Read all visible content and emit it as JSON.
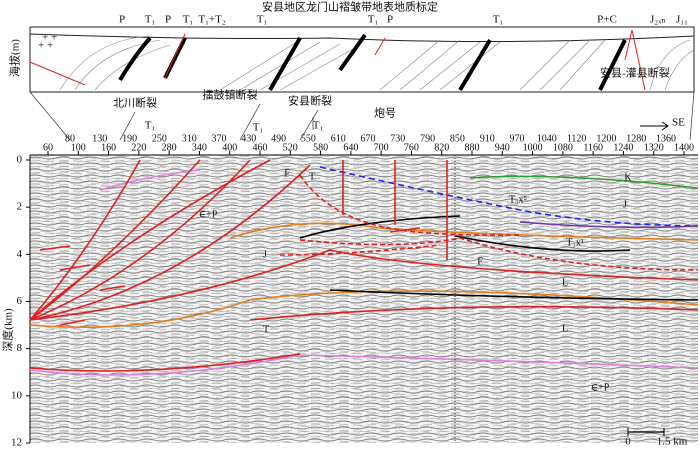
{
  "title": "安县地区龙门山褶皱带地表地质标定",
  "top_section": {
    "y_axis_label": "海拔(m)",
    "unit_labels": [
      "P",
      "T₁",
      "P",
      "T₁",
      "T₁+T₂",
      "T₁",
      "T₁",
      "P",
      "T₁",
      "P+C",
      "J₂ₓₙ",
      "J₁₁"
    ],
    "fault_label": "安县-灌县断裂"
  },
  "faults": [
    {
      "name": "北川断裂",
      "unit": "T₁"
    },
    {
      "name": "擂鼓镇断裂",
      "unit": "T₁"
    },
    {
      "name": "安县断裂",
      "unit": "T₁"
    }
  ],
  "shot_axis": {
    "label": "炮号",
    "direction": "SE",
    "upper_ticks": [
      80,
      130,
      190,
      250,
      310,
      370,
      430,
      490,
      550,
      610,
      670,
      730,
      790,
      850,
      910,
      970,
      1040,
      1120,
      1200,
      1280,
      1360
    ],
    "lower_ticks": [
      60,
      100,
      160,
      220,
      280,
      340,
      400,
      460,
      520,
      580,
      640,
      700,
      760,
      820,
      880,
      940,
      1000,
      1080,
      1160,
      1240,
      1320,
      1400
    ]
  },
  "depth_axis": {
    "label": "深度(km)",
    "ticks": [
      0,
      2,
      4,
      6,
      8,
      10,
      12
    ]
  },
  "section_labels": [
    "K",
    "J",
    "T₃x⁵",
    "T₃x¹",
    "F",
    "L",
    "L",
    "T",
    "∈+P",
    "∈+P",
    "J",
    "F",
    "T"
  ],
  "scale_bar": {
    "start": "0",
    "end": "1.5 km"
  }
}
